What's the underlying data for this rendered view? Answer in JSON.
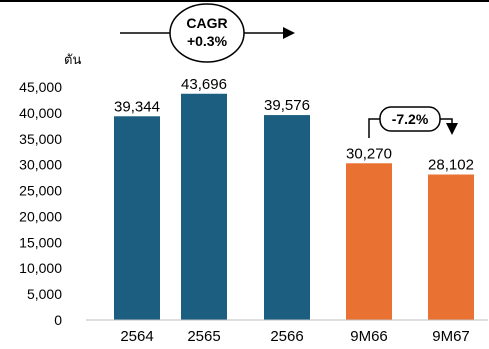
{
  "chart_data": {
    "type": "bar",
    "unit_label": "ตัน",
    "categories": [
      "2564",
      "2565",
      "2566",
      "9M66",
      "9M67"
    ],
    "values": [
      39344,
      43696,
      39576,
      30270,
      28102
    ],
    "value_labels": [
      "39,344",
      "43,696",
      "39,576",
      "30,270",
      "28,102"
    ],
    "bar_colors": [
      "#1b5e80",
      "#1b5e80",
      "#1b5e80",
      "#e97132",
      "#e97132"
    ],
    "ylim": [
      0,
      45000
    ],
    "yticks": [
      "0",
      "5,000",
      "10,000",
      "15,000",
      "20,000",
      "25,000",
      "30,000",
      "35,000",
      "40,000",
      "45,000"
    ],
    "grid": false,
    "annotations": {
      "cagr_line1": "CAGR",
      "cagr_line2": "+0.3%",
      "change": "-7.2%"
    }
  }
}
